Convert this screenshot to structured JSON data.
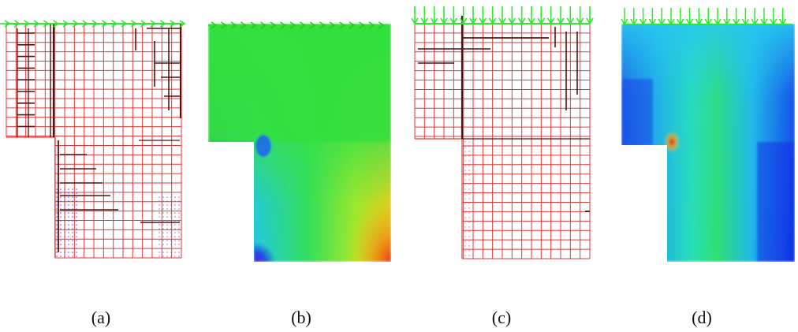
{
  "panels": [
    {
      "id": "a",
      "caption": "(a)",
      "kind": "mesh",
      "load": "horizontal"
    },
    {
      "id": "b",
      "caption": "(b)",
      "kind": "field",
      "load": "horizontal"
    },
    {
      "id": "c",
      "caption": "(c)",
      "kind": "mesh",
      "load": "vertical"
    },
    {
      "id": "d",
      "caption": "(d)",
      "kind": "field",
      "load": "vertical"
    }
  ],
  "colors": {
    "mesh_line": "#e03a3a",
    "mesh_dark": "#5a1010",
    "arrow": "#2ee82e",
    "field_green": "#2fe03a",
    "field_blue": "#1030e8",
    "field_cyan": "#25d8e8",
    "field_yellow": "#f0e81a",
    "field_red": "#f03a10"
  }
}
